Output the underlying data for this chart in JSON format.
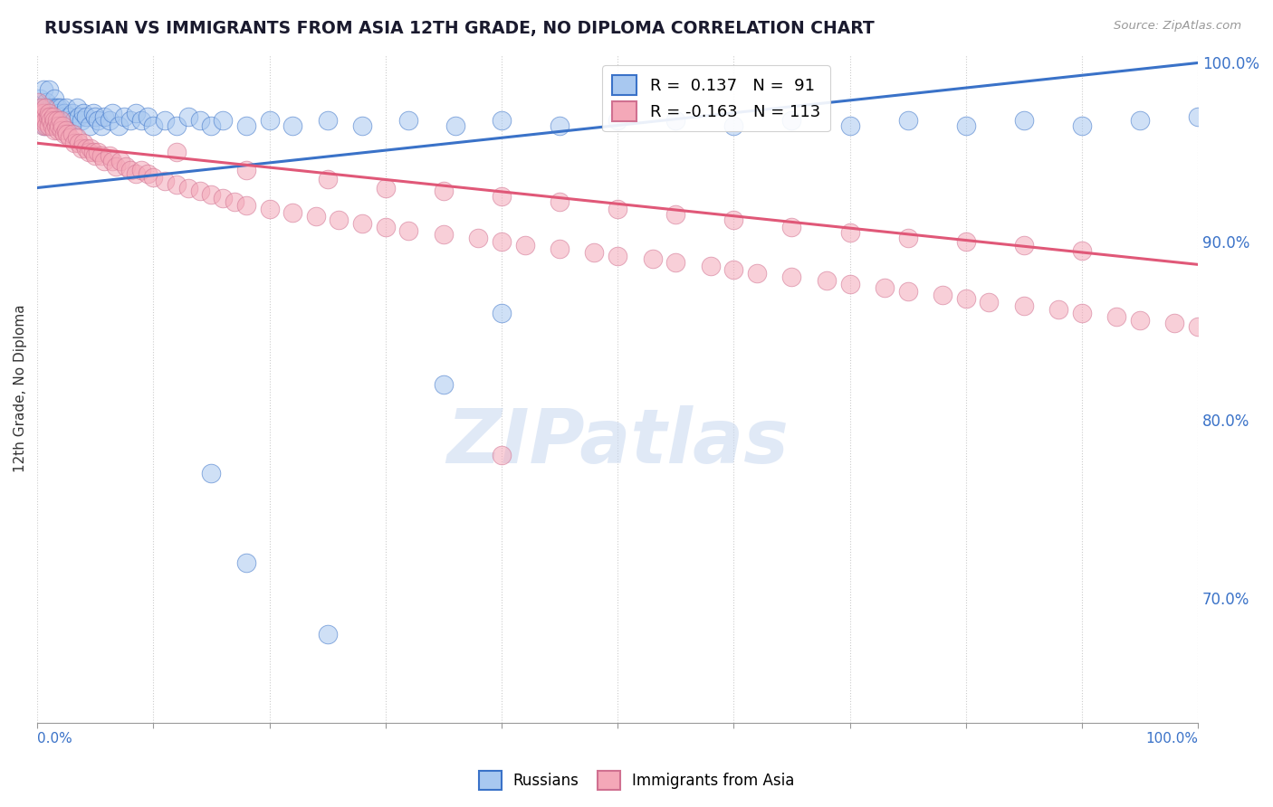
{
  "title": "RUSSIAN VS IMMIGRANTS FROM ASIA 12TH GRADE, NO DIPLOMA CORRELATION CHART",
  "source": "Source: ZipAtlas.com",
  "ylabel": "12th Grade, No Diploma",
  "legend_labels": [
    "Russians",
    "Immigrants from Asia"
  ],
  "r_russian": 0.137,
  "n_russian": 91,
  "r_asian": -0.163,
  "n_asian": 113,
  "blue_color": "#A8C8F0",
  "pink_color": "#F4A8B8",
  "trend_blue": "#3A72C8",
  "trend_pink": "#E05878",
  "watermark": "ZIPatlas",
  "ylim_low": 0.63,
  "ylim_high": 1.005,
  "xlim_low": 0.0,
  "xlim_high": 1.0,
  "right_ytick_vals": [
    0.7,
    0.8,
    0.9,
    1.0
  ],
  "right_ytick_labels": [
    "70.0%",
    "80.0%",
    "90.0%",
    "100.0%"
  ],
  "blue_trend_x0": 0.0,
  "blue_trend_y0": 0.93,
  "blue_trend_x1": 1.0,
  "blue_trend_y1": 1.0,
  "pink_trend_x0": 0.0,
  "pink_trend_y0": 0.955,
  "pink_trend_x1": 1.0,
  "pink_trend_y1": 0.887,
  "russian_x": [
    0.002,
    0.003,
    0.004,
    0.005,
    0.006,
    0.006,
    0.007,
    0.007,
    0.008,
    0.008,
    0.009,
    0.009,
    0.01,
    0.01,
    0.01,
    0.011,
    0.011,
    0.012,
    0.012,
    0.013,
    0.014,
    0.014,
    0.015,
    0.015,
    0.016,
    0.016,
    0.017,
    0.018,
    0.018,
    0.019,
    0.02,
    0.021,
    0.022,
    0.023,
    0.025,
    0.025,
    0.027,
    0.028,
    0.03,
    0.032,
    0.034,
    0.036,
    0.038,
    0.04,
    0.042,
    0.045,
    0.048,
    0.05,
    0.052,
    0.055,
    0.058,
    0.062,
    0.065,
    0.07,
    0.075,
    0.08,
    0.085,
    0.09,
    0.095,
    0.1,
    0.11,
    0.12,
    0.13,
    0.14,
    0.15,
    0.16,
    0.18,
    0.2,
    0.22,
    0.25,
    0.28,
    0.32,
    0.36,
    0.4,
    0.45,
    0.5,
    0.55,
    0.6,
    0.65,
    0.7,
    0.75,
    0.8,
    0.85,
    0.9,
    0.95,
    1.0,
    0.15,
    0.18,
    0.25,
    0.35,
    0.4
  ],
  "russian_y": [
    0.98,
    0.97,
    0.975,
    0.985,
    0.972,
    0.965,
    0.968,
    0.975,
    0.97,
    0.978,
    0.972,
    0.965,
    0.985,
    0.975,
    0.968,
    0.972,
    0.965,
    0.975,
    0.968,
    0.972,
    0.968,
    0.975,
    0.98,
    0.972,
    0.975,
    0.965,
    0.97,
    0.975,
    0.968,
    0.972,
    0.975,
    0.97,
    0.968,
    0.972,
    0.975,
    0.965,
    0.97,
    0.968,
    0.972,
    0.968,
    0.975,
    0.97,
    0.968,
    0.972,
    0.97,
    0.965,
    0.972,
    0.97,
    0.968,
    0.965,
    0.97,
    0.968,
    0.972,
    0.965,
    0.97,
    0.968,
    0.972,
    0.968,
    0.97,
    0.965,
    0.968,
    0.965,
    0.97,
    0.968,
    0.965,
    0.968,
    0.965,
    0.968,
    0.965,
    0.968,
    0.965,
    0.968,
    0.965,
    0.968,
    0.965,
    0.968,
    0.968,
    0.965,
    0.968,
    0.965,
    0.968,
    0.965,
    0.968,
    0.965,
    0.968,
    0.97,
    0.77,
    0.72,
    0.68,
    0.82,
    0.86
  ],
  "asian_x": [
    0.001,
    0.002,
    0.003,
    0.004,
    0.005,
    0.005,
    0.006,
    0.007,
    0.007,
    0.008,
    0.009,
    0.01,
    0.01,
    0.011,
    0.012,
    0.013,
    0.014,
    0.015,
    0.015,
    0.016,
    0.017,
    0.018,
    0.019,
    0.02,
    0.021,
    0.022,
    0.023,
    0.025,
    0.026,
    0.028,
    0.03,
    0.032,
    0.034,
    0.036,
    0.038,
    0.04,
    0.042,
    0.044,
    0.046,
    0.048,
    0.05,
    0.052,
    0.055,
    0.058,
    0.062,
    0.065,
    0.068,
    0.072,
    0.076,
    0.08,
    0.085,
    0.09,
    0.095,
    0.1,
    0.11,
    0.12,
    0.13,
    0.14,
    0.15,
    0.16,
    0.17,
    0.18,
    0.2,
    0.22,
    0.24,
    0.26,
    0.28,
    0.3,
    0.32,
    0.35,
    0.38,
    0.4,
    0.42,
    0.45,
    0.48,
    0.5,
    0.53,
    0.55,
    0.58,
    0.6,
    0.62,
    0.65,
    0.68,
    0.7,
    0.73,
    0.75,
    0.78,
    0.8,
    0.82,
    0.85,
    0.88,
    0.9,
    0.93,
    0.95,
    0.98,
    1.0,
    0.12,
    0.18,
    0.25,
    0.3,
    0.35,
    0.4,
    0.45,
    0.5,
    0.55,
    0.6,
    0.65,
    0.7,
    0.75,
    0.8,
    0.85,
    0.9,
    0.4
  ],
  "asian_y": [
    0.978,
    0.972,
    0.975,
    0.968,
    0.972,
    0.965,
    0.97,
    0.968,
    0.975,
    0.965,
    0.97,
    0.972,
    0.965,
    0.97,
    0.968,
    0.965,
    0.97,
    0.968,
    0.962,
    0.965,
    0.968,
    0.962,
    0.965,
    0.968,
    0.962,
    0.965,
    0.96,
    0.962,
    0.96,
    0.958,
    0.96,
    0.955,
    0.958,
    0.955,
    0.952,
    0.955,
    0.952,
    0.95,
    0.952,
    0.95,
    0.948,
    0.95,
    0.948,
    0.945,
    0.948,
    0.945,
    0.942,
    0.945,
    0.942,
    0.94,
    0.938,
    0.94,
    0.938,
    0.936,
    0.934,
    0.932,
    0.93,
    0.928,
    0.926,
    0.924,
    0.922,
    0.92,
    0.918,
    0.916,
    0.914,
    0.912,
    0.91,
    0.908,
    0.906,
    0.904,
    0.902,
    0.9,
    0.898,
    0.896,
    0.894,
    0.892,
    0.89,
    0.888,
    0.886,
    0.884,
    0.882,
    0.88,
    0.878,
    0.876,
    0.874,
    0.872,
    0.87,
    0.868,
    0.866,
    0.864,
    0.862,
    0.86,
    0.858,
    0.856,
    0.854,
    0.852,
    0.95,
    0.94,
    0.935,
    0.93,
    0.928,
    0.925,
    0.922,
    0.918,
    0.915,
    0.912,
    0.908,
    0.905,
    0.902,
    0.9,
    0.898,
    0.895,
    0.78
  ]
}
